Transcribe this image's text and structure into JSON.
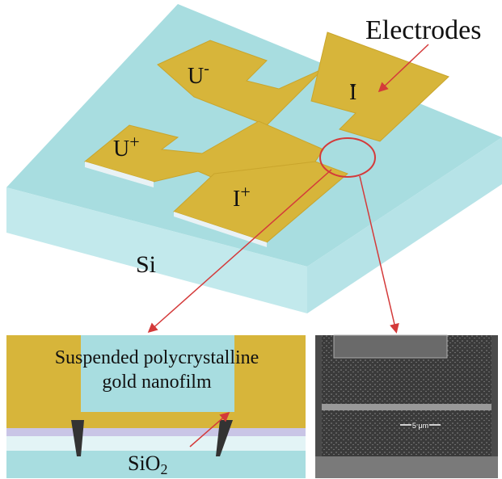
{
  "top_view": {
    "electrodes_label": "Electrodes",
    "pads": [
      {
        "base": "U",
        "sup": "-"
      },
      {
        "base": "I",
        "sup": "-"
      },
      {
        "base": "U",
        "sup": "+"
      },
      {
        "base": "I",
        "sup": "+"
      }
    ],
    "substrate_label": "Si"
  },
  "cross_section": {
    "film_label": [
      "Suspended polycrystalline",
      "gold nanofilm"
    ],
    "oxide_label": {
      "base": "SiO",
      "sub": "2"
    }
  },
  "sem_image": {
    "scale_bar": "5 μm"
  }
}
